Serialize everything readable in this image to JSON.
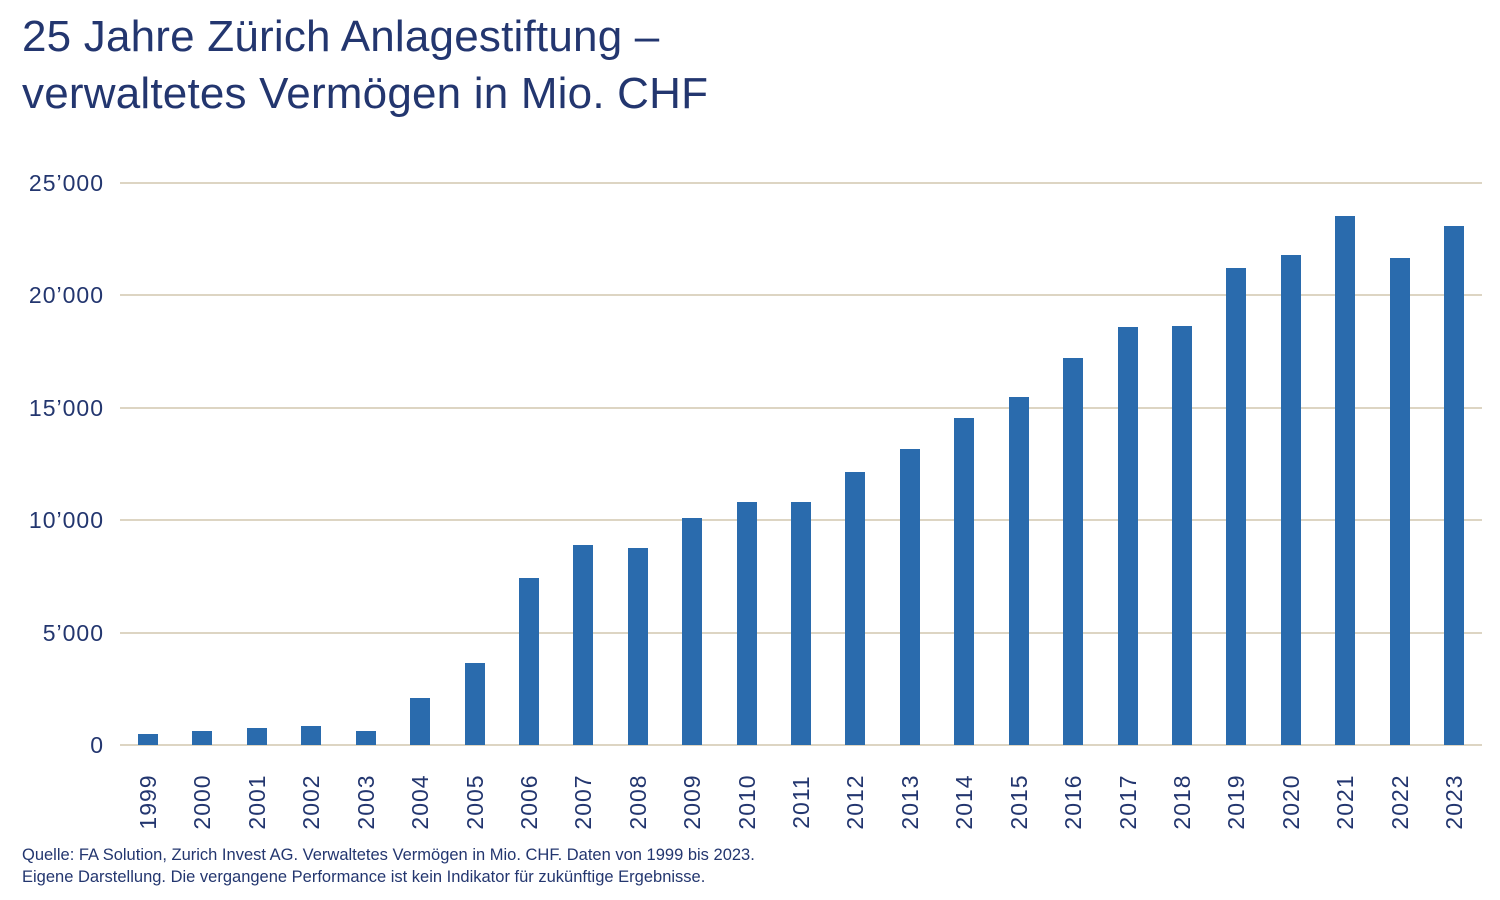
{
  "title": {
    "line1": "25 Jahre Zürich Anlagestiftung –",
    "line2": "verwaltetes Vermögen in Mio. CHF"
  },
  "footer": {
    "line1": "Quelle: FA Solution, Zurich Invest AG. Verwaltetes Vermögen in Mio. CHF. Daten von 1999 bis 2023.",
    "line2": "Eigene Darstellung. Die vergangene Performance ist kein Indikator für zukünftige Ergebnisse."
  },
  "colors": {
    "bar": "#2a6bad",
    "gridline": "#ddd5c3",
    "text": "#23366f",
    "background": "#ffffff"
  },
  "chart_data": {
    "type": "bar",
    "title": "25 Jahre Zürich Anlagestiftung – verwaltetes Vermögen in Mio. CHF",
    "xlabel": "",
    "ylabel": "",
    "categories": [
      "1999",
      "2000",
      "2001",
      "2002",
      "2003",
      "2004",
      "2005",
      "2006",
      "2007",
      "2008",
      "2009",
      "2010",
      "2011",
      "2012",
      "2013",
      "2014",
      "2015",
      "2016",
      "2017",
      "2018",
      "2019",
      "2020",
      "2021",
      "2022",
      "2023"
    ],
    "values": [
      500,
      620,
      750,
      850,
      620,
      2100,
      3650,
      7450,
      8900,
      8750,
      10100,
      10800,
      10800,
      12150,
      13150,
      14550,
      15500,
      17200,
      18600,
      18650,
      21200,
      21800,
      23550,
      21650,
      23100
    ],
    "ylim": [
      0,
      25000
    ],
    "ytick_interval": 5000,
    "ytick_labels": [
      "0",
      "5’000",
      "10’000",
      "15’000",
      "20’000",
      "25’000"
    ],
    "grid": "horizontal",
    "legend": "none",
    "bar_orientation": "vertical",
    "x_label_rotation_deg": -90
  }
}
